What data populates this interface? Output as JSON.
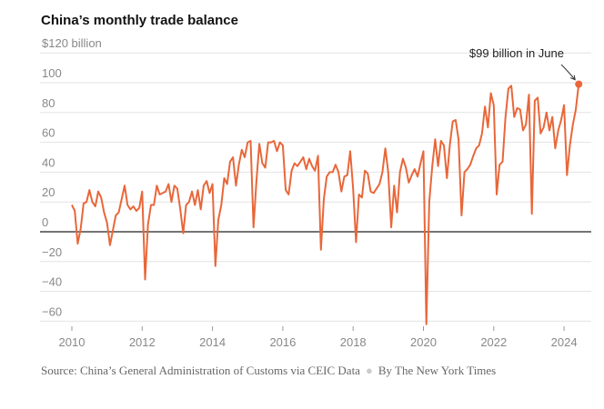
{
  "chart_data": {
    "type": "line",
    "title": "China’s monthly trade balance",
    "ylabel": "$120 billion",
    "ylim": [
      -65,
      120
    ],
    "yticks": [
      120,
      100,
      80,
      60,
      40,
      20,
      0,
      -20,
      -40,
      -60
    ],
    "ytick_labels": [
      "$120 billion",
      "100",
      "80",
      "60",
      "40",
      "20",
      "0",
      "−20",
      "−40",
      "−60"
    ],
    "xticks": [
      "2010",
      "2012",
      "2014",
      "2016",
      "2018",
      "2020",
      "2022",
      "2024"
    ],
    "grid": true,
    "start": "2010-01",
    "end": "2024-06",
    "color": "#e8673a",
    "annotation": {
      "text": "$99 billion in June",
      "x": "2024-06",
      "y": 99
    },
    "values": [
      18,
      14,
      -8,
      2,
      19,
      20,
      28,
      20,
      17,
      27,
      23,
      13,
      6,
      -9,
      1,
      11,
      13,
      22,
      31,
      18,
      15,
      17,
      14,
      16,
      27,
      -32,
      5,
      18,
      18,
      31,
      25,
      26,
      27,
      32,
      20,
      31,
      29,
      15,
      -1,
      18,
      20,
      27,
      18,
      28,
      15,
      31,
      34,
      26,
      32,
      -23,
      8,
      18,
      36,
      32,
      47,
      50,
      31,
      45,
      55,
      50,
      60,
      61,
      3,
      34,
      59,
      46,
      43,
      60,
      60,
      61,
      54,
      60,
      58,
      28,
      25,
      41,
      46,
      44,
      47,
      50,
      42,
      49,
      44,
      41,
      51,
      -12,
      22,
      37,
      40,
      40,
      45,
      40,
      27,
      37,
      38,
      54,
      29,
      -7,
      25,
      23,
      41,
      39,
      27,
      26,
      29,
      32,
      40,
      56,
      40,
      3,
      31,
      13,
      40,
      49,
      43,
      33,
      38,
      42,
      37,
      46,
      54,
      -62,
      20,
      44,
      62,
      44,
      61,
      58,
      36,
      58,
      74,
      75,
      62,
      11,
      40,
      42,
      45,
      51,
      56,
      58,
      66,
      84,
      70,
      93,
      85,
      25,
      45,
      47,
      77,
      96,
      98,
      77,
      83,
      82,
      68,
      72,
      92,
      12,
      88,
      90,
      66,
      70,
      80,
      68,
      77,
      56,
      68,
      75,
      85,
      38,
      58,
      72,
      82,
      99
    ]
  },
  "source": {
    "text": "Source: China’s General Administration of Customs via CEIC Data",
    "byline": "By The New York Times"
  }
}
